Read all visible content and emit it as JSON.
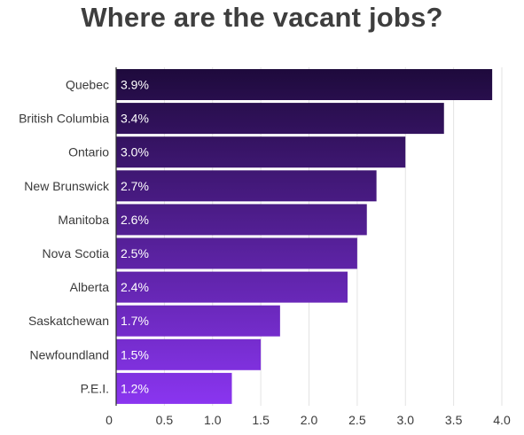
{
  "chart_data": {
    "type": "bar",
    "orientation": "horizontal",
    "title": "Where are the vacant jobs?",
    "xlabel": "",
    "ylabel": "",
    "categories": [
      "Quebec",
      "British Columbia",
      "Ontario",
      "New Brunswick",
      "Manitoba",
      "Nova Scotia",
      "Alberta",
      "Saskatchewan",
      "Newfoundland",
      "P.E.I."
    ],
    "values": [
      3.9,
      3.4,
      3.0,
      2.7,
      2.6,
      2.5,
      2.4,
      1.7,
      1.5,
      1.2
    ],
    "data_labels": [
      "3.9%",
      "3.4%",
      "3.0%",
      "2.7%",
      "2.6%",
      "2.5%",
      "2.4%",
      "1.7%",
      "1.5%",
      "1.2%"
    ],
    "xlim": [
      0,
      4.0
    ],
    "x_ticks": [
      0,
      0.5,
      1.0,
      1.5,
      2.0,
      2.5,
      3.0,
      3.5,
      4.0
    ],
    "x_tick_labels": [
      "0",
      "0.5",
      "1.0",
      "1.5",
      "2.0",
      "2.5",
      "3.0",
      "3.5",
      "4.0"
    ],
    "grid": true,
    "legend": "none",
    "colors": {
      "bar_top": "#1e0a3c",
      "bar_bottom": "#8a35f0",
      "title": "#3e3e3e",
      "label": "#3a3a3a",
      "grid": "#e3e3e3",
      "axis": "#2a2a2a",
      "data_label": "#ffffff"
    }
  }
}
